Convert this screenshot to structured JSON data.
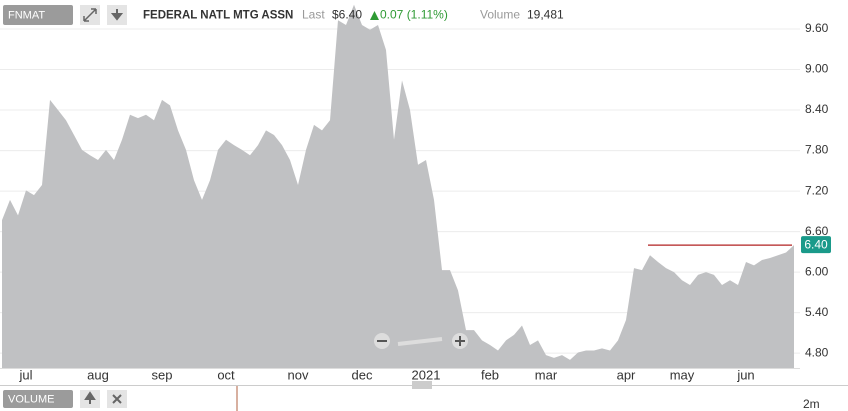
{
  "header": {
    "symbol": "FNMAT",
    "name": "FEDERAL NATL MTG ASSN",
    "last_label": "Last",
    "last": "$6.40",
    "change": "0.07 (1.11%)",
    "volume_label": "Volume",
    "volume": "19,481"
  },
  "volume_panel": {
    "label": "VOLUME",
    "scale": "2m"
  },
  "chart_data": {
    "type": "area",
    "color": "#c0c1c3",
    "grid": true,
    "categories": [
      null,
      null,
      null,
      "jul",
      null,
      null,
      null,
      null,
      null,
      null,
      null,
      null,
      "aug",
      null,
      null,
      null,
      null,
      null,
      null,
      null,
      "sep",
      null,
      null,
      null,
      null,
      null,
      null,
      null,
      "oct",
      null,
      null,
      null,
      null,
      null,
      null,
      null,
      null,
      "nov",
      null,
      null,
      null,
      null,
      null,
      null,
      null,
      "dec",
      null,
      null,
      null,
      null,
      null,
      null,
      null,
      "2021",
      null,
      null,
      null,
      null,
      null,
      null,
      null,
      "feb",
      null,
      null,
      null,
      null,
      null,
      null,
      "mar",
      null,
      null,
      null,
      null,
      null,
      null,
      null,
      null,
      null,
      "apr",
      null,
      null,
      null,
      null,
      null,
      null,
      "may",
      null,
      null,
      null,
      null,
      null,
      null,
      null,
      "jun",
      null,
      null,
      null,
      null,
      null,
      null
    ],
    "values": [
      6.77,
      7.07,
      6.84,
      7.21,
      7.14,
      7.29,
      8.55,
      8.4,
      8.25,
      8.03,
      7.81,
      7.73,
      7.66,
      7.81,
      7.66,
      7.96,
      8.33,
      8.28,
      8.33,
      8.25,
      8.55,
      8.47,
      8.1,
      7.81,
      7.36,
      7.07,
      7.36,
      7.81,
      7.96,
      7.88,
      7.81,
      7.73,
      7.88,
      8.1,
      8.03,
      7.88,
      7.66,
      7.29,
      7.81,
      8.18,
      8.1,
      8.25,
      9.73,
      9.66,
      9.96,
      9.66,
      9.59,
      9.66,
      9.29,
      7.96,
      8.84,
      8.4,
      7.59,
      7.66,
      7.07,
      6.03,
      6.03,
      5.73,
      5.14,
      5.14,
      4.99,
      4.92,
      4.84,
      4.99,
      5.07,
      5.21,
      4.92,
      4.99,
      4.77,
      4.73,
      4.77,
      4.7,
      4.81,
      4.84,
      4.84,
      4.87,
      4.84,
      4.99,
      5.29,
      6.06,
      6.03,
      6.25,
      6.15,
      6.06,
      6.0,
      5.88,
      5.81,
      5.96,
      6.0,
      5.96,
      5.81,
      5.88,
      5.81,
      6.15,
      6.1,
      6.18,
      6.21,
      6.25,
      6.29,
      6.4
    ],
    "ylim": [
      4.58,
      10.03
    ],
    "yticks": [
      {
        "value": 4.8,
        "label": "4.80"
      },
      {
        "value": 5.4,
        "label": "5.40"
      },
      {
        "value": 6.0,
        "label": "6.00"
      },
      {
        "value": 6.6,
        "label": "6.60"
      },
      {
        "value": 7.2,
        "label": "7.20"
      },
      {
        "value": 7.8,
        "label": "7.80"
      },
      {
        "value": 8.4,
        "label": "8.40"
      },
      {
        "value": 9.0,
        "label": "9.00"
      },
      {
        "value": 9.6,
        "label": "9.60"
      }
    ],
    "marker": {
      "value": 6.4,
      "label": "6.40",
      "color": "#b22222"
    }
  }
}
